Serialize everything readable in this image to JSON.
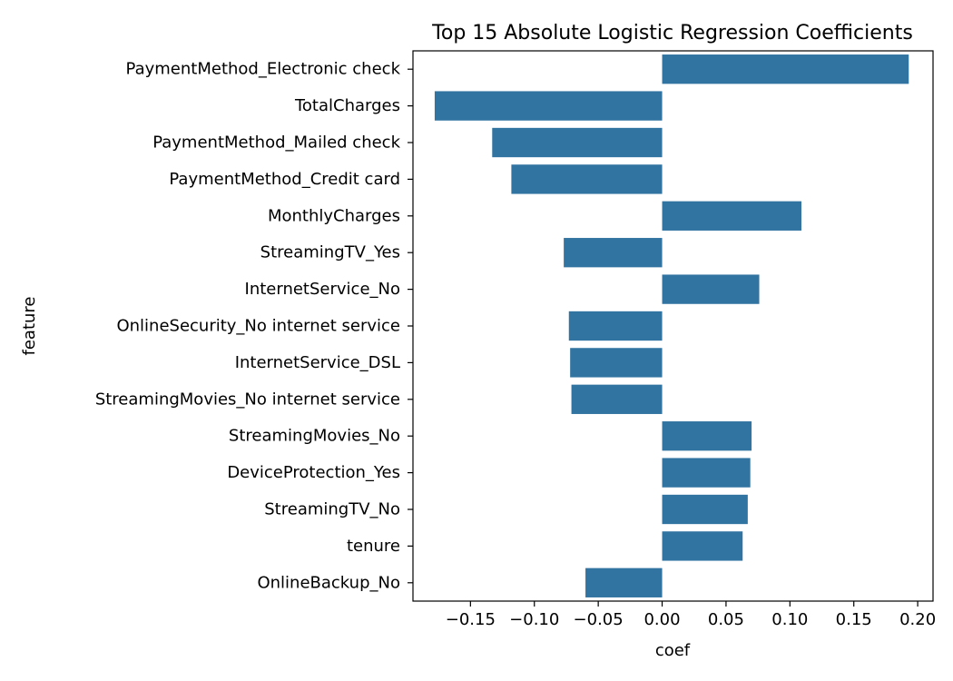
{
  "chart_data": {
    "type": "bar",
    "orientation": "horizontal",
    "title": "Top 15 Absolute Logistic Regression Coefficients",
    "xlabel": "coef",
    "ylabel": "feature",
    "categories": [
      "PaymentMethod_Electronic check",
      "TotalCharges",
      "PaymentMethod_Mailed check",
      "PaymentMethod_Credit card",
      "MonthlyCharges",
      "StreamingTV_Yes",
      "InternetService_No",
      "OnlineSecurity_No internet service",
      "InternetService_DSL",
      "StreamingMovies_No internet service",
      "StreamingMovies_No",
      "DeviceProtection_Yes",
      "StreamingTV_No",
      "tenure",
      "OnlineBackup_No"
    ],
    "values": [
      0.193,
      -0.178,
      -0.133,
      -0.118,
      0.109,
      -0.077,
      0.076,
      -0.073,
      -0.072,
      -0.071,
      0.07,
      0.069,
      0.067,
      0.063,
      -0.06
    ],
    "xlim": [
      -0.195,
      0.212
    ],
    "xticks": [
      -0.15,
      -0.1,
      -0.05,
      0.0,
      0.05,
      0.1,
      0.15,
      0.2
    ],
    "xtick_labels": [
      "−0.15",
      "−0.10",
      "−0.05",
      "0.00",
      "0.05",
      "0.10",
      "0.15",
      "0.20"
    ],
    "bar_color": "#3274a1",
    "grid": false
  }
}
